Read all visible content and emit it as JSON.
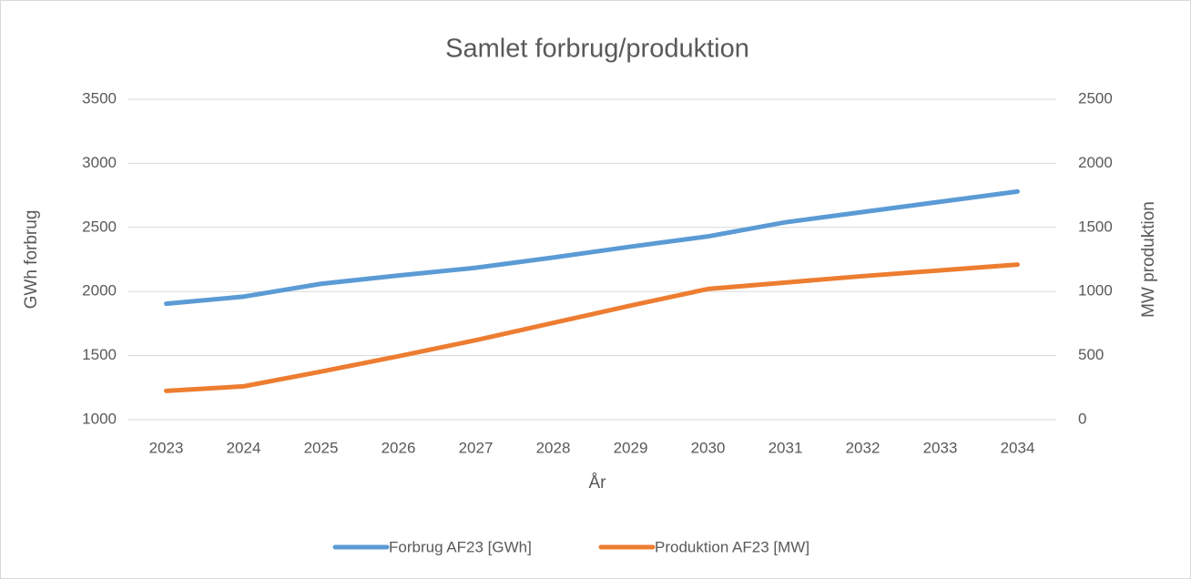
{
  "chart_data": {
    "type": "line",
    "title": "Samlet forbrug/produktion",
    "x_label": "År",
    "y_label": "GWh forbrug",
    "y2_label": "MW produktion",
    "categories": [
      "2023",
      "2024",
      "2025",
      "2026",
      "2027",
      "2028",
      "2029",
      "2030",
      "2031",
      "2032",
      "2033",
      "2034"
    ],
    "series": [
      {
        "name": "Forbrug AF23 [GWh]",
        "color": "#5b9bd5",
        "values": [
          1905,
          1960,
          2060,
          2125,
          2185,
          2265,
          2350,
          2430,
          2540,
          2620,
          2700,
          2780
        ]
      },
      {
        "name": "Produktion AF23 [MW]",
        "color": "#ed7d31",
        "axis": "y2",
        "values": [
          225,
          260,
          375,
          495,
          620,
          755,
          890,
          1020,
          1070,
          1120,
          1165,
          1210
        ]
      }
    ],
    "ylim": [
      1000,
      3500
    ],
    "yticks": [
      1000,
      1500,
      2000,
      2500,
      3000,
      3500
    ],
    "y2lim": [
      0,
      2500
    ],
    "y2ticks": [
      0,
      500,
      1000,
      1500,
      2000,
      2500
    ],
    "grid": true,
    "legend": "bottom"
  }
}
